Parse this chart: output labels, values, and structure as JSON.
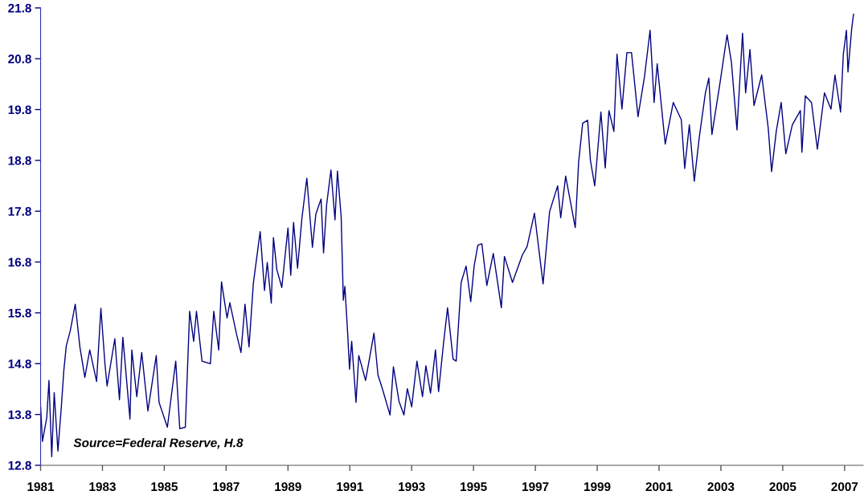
{
  "chart_data": {
    "type": "line",
    "x": [
      1981.0,
      1981.06,
      1981.2,
      1981.27,
      1981.36,
      1981.44,
      1981.56,
      1981.67,
      1981.75,
      1981.83,
      1981.96,
      1982.12,
      1982.27,
      1982.43,
      1982.59,
      1982.81,
      1982.95,
      1983.08,
      1983.15,
      1983.4,
      1983.55,
      1983.66,
      1983.89,
      1983.95,
      1984.11,
      1984.27,
      1984.47,
      1984.74,
      1984.83,
      1985.1,
      1985.37,
      1985.5,
      1985.68,
      1985.82,
      1985.95,
      1986.04,
      1986.22,
      1986.49,
      1986.6,
      1986.76,
      1986.85,
      1987.03,
      1987.12,
      1987.34,
      1987.48,
      1987.61,
      1987.74,
      1987.88,
      1988.1,
      1988.24,
      1988.33,
      1988.46,
      1988.53,
      1988.64,
      1988.8,
      1989.0,
      1989.09,
      1989.18,
      1989.31,
      1989.45,
      1989.61,
      1989.79,
      1989.9,
      1990.07,
      1990.15,
      1990.25,
      1990.39,
      1990.52,
      1990.6,
      1990.72,
      1990.79,
      1990.84,
      1990.93,
      1990.99,
      1991.06,
      1991.2,
      1991.29,
      1991.51,
      1991.78,
      1991.91,
      1992.05,
      1992.3,
      1992.41,
      1992.59,
      1992.75,
      1992.86,
      1993.0,
      1993.17,
      1993.35,
      1993.46,
      1993.61,
      1993.77,
      1993.87,
      1994.03,
      1994.16,
      1994.34,
      1994.44,
      1994.6,
      1994.76,
      1994.91,
      1995.02,
      1995.14,
      1995.27,
      1995.43,
      1995.64,
      1995.9,
      1996.0,
      1996.26,
      1996.58,
      1996.73,
      1996.97,
      1997.25,
      1997.46,
      1997.72,
      1997.82,
      1997.98,
      1998.29,
      1998.4,
      1998.53,
      1998.69,
      1998.78,
      1998.92,
      1999.12,
      1999.26,
      1999.38,
      1999.54,
      1999.64,
      1999.8,
      1999.96,
      2000.11,
      2000.32,
      2000.53,
      2000.71,
      2000.84,
      2000.94,
      2001.2,
      2001.46,
      2001.72,
      2001.83,
      2001.98,
      2002.14,
      2002.3,
      2002.5,
      2002.61,
      2002.71,
      2002.97,
      2003.2,
      2003.34,
      2003.52,
      2003.7,
      2003.8,
      2003.94,
      2004.07,
      2004.32,
      2004.53,
      2004.64,
      2004.79,
      2004.95,
      2005.1,
      2005.31,
      2005.57,
      2005.62,
      2005.73,
      2005.93,
      2006.12,
      2006.35,
      2006.56,
      2006.69,
      2006.87,
      2006.96,
      2007.06,
      2007.11,
      2007.23,
      2007.29
    ],
    "series": [
      {
        "color": "#000080",
        "values": [
          13.95,
          13.27,
          13.74,
          14.47,
          12.97,
          14.23,
          13.08,
          13.95,
          14.66,
          15.15,
          15.45,
          15.97,
          15.13,
          14.53,
          15.07,
          14.45,
          15.89,
          14.8,
          14.36,
          15.29,
          14.09,
          15.32,
          13.71,
          15.07,
          14.15,
          15.02,
          13.87,
          14.96,
          14.04,
          13.55,
          14.85,
          13.52,
          13.55,
          15.83,
          15.24,
          15.83,
          14.85,
          14.8,
          15.83,
          15.07,
          16.41,
          15.7,
          16.0,
          15.37,
          15.02,
          15.97,
          15.13,
          16.38,
          17.4,
          16.24,
          16.79,
          15.99,
          17.28,
          16.65,
          16.3,
          17.47,
          16.54,
          17.58,
          16.68,
          17.66,
          18.45,
          17.09,
          17.74,
          18.04,
          16.98,
          17.93,
          18.61,
          17.63,
          18.59,
          17.69,
          16.05,
          16.32,
          15.4,
          14.69,
          15.24,
          14.04,
          14.96,
          14.47,
          15.4,
          14.58,
          14.31,
          13.79,
          14.74,
          14.06,
          13.79,
          14.31,
          13.95,
          14.85,
          14.15,
          14.76,
          14.22,
          15.07,
          14.25,
          15.2,
          15.9,
          14.89,
          14.85,
          16.4,
          16.72,
          16.02,
          16.72,
          17.13,
          17.16,
          16.34,
          16.97,
          15.9,
          16.91,
          16.4,
          16.94,
          17.1,
          17.76,
          16.37,
          17.79,
          18.3,
          17.67,
          18.49,
          17.48,
          18.77,
          19.53,
          19.59,
          18.8,
          18.3,
          19.75,
          18.65,
          19.78,
          19.37,
          20.89,
          19.81,
          20.92,
          20.92,
          19.66,
          20.45,
          21.36,
          19.94,
          20.7,
          19.12,
          19.94,
          19.6,
          18.64,
          19.5,
          18.39,
          19.25,
          20.13,
          20.42,
          19.31,
          20.32,
          21.27,
          20.73,
          19.4,
          21.3,
          20.13,
          20.98,
          19.88,
          20.48,
          19.44,
          18.58,
          19.37,
          19.94,
          18.93,
          19.5,
          19.78,
          18.96,
          20.07,
          19.94,
          19.02,
          20.13,
          19.81,
          20.48,
          19.75,
          20.89,
          21.36,
          20.54,
          21.39,
          21.68
        ]
      }
    ],
    "xlim": [
      1981,
      2007.6
    ],
    "xticks": [
      1981,
      1983,
      1985,
      1987,
      1989,
      1991,
      1993,
      1995,
      1997,
      1999,
      2001,
      2003,
      2005,
      2007
    ],
    "ylim": [
      12.8,
      21.8
    ],
    "yticks": [
      12.8,
      13.8,
      14.8,
      15.8,
      16.8,
      17.8,
      18.8,
      19.8,
      20.8,
      21.8
    ],
    "grid": false,
    "annotations": [
      "Source=Federal Reserve, H.8"
    ]
  }
}
